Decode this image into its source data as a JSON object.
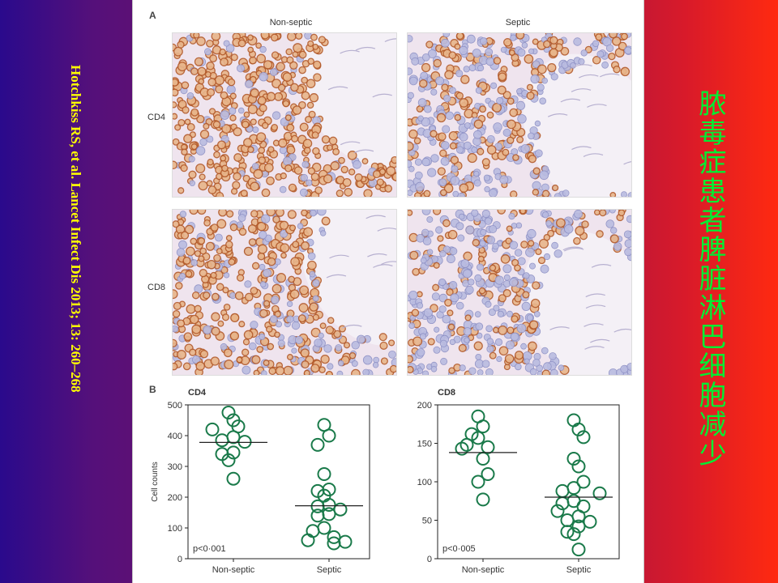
{
  "citation": "Hotchkiss RS, et al. Lancet Infect Dis 2013; 13: 260–268",
  "slide_title": "脓毒症患者脾脏淋巴细胞减少",
  "figure": {
    "panel_a_label": "A",
    "panel_b_label": "B",
    "column_labels": [
      "Non-septic",
      "Septic"
    ],
    "row_labels": [
      "CD4",
      "CD8"
    ],
    "micrographs": [
      {
        "row": "CD4",
        "column": "Non-septic",
        "stain_level": 0.85
      },
      {
        "row": "CD4",
        "column": "Septic",
        "stain_level": 0.45
      },
      {
        "row": "CD8",
        "column": "Non-septic",
        "stain_level": 0.7
      },
      {
        "row": "CD8",
        "column": "Septic",
        "stain_level": 0.3
      }
    ]
  },
  "colors": {
    "marker": "#1a7a4a",
    "stain_brown": "#b35a2a",
    "stain_blue": "#8c8fc4",
    "tissue_bg": "#efe4ee",
    "title_green": "#00ee33",
    "citation_yellow": "#ffff00"
  },
  "chart_data": [
    {
      "type": "scatter",
      "title": "CD4",
      "ylabel": "Cell counts",
      "xlabel": "",
      "categories": [
        "Non-septic",
        "Septic"
      ],
      "ylim": [
        0,
        500
      ],
      "yticks": [
        0,
        100,
        200,
        300,
        400,
        500
      ],
      "annotation": "p<0·001",
      "medians": [
        378,
        172
      ],
      "points": {
        "Non-septic": [
          475,
          450,
          430,
          420,
          395,
          385,
          380,
          345,
          340,
          320,
          260
        ],
        "Septic": [
          435,
          400,
          370,
          275,
          225,
          220,
          205,
          175,
          170,
          160,
          145,
          140,
          100,
          90,
          70,
          60,
          55,
          50
        ]
      }
    },
    {
      "type": "scatter",
      "title": "CD8",
      "ylabel": "",
      "xlabel": "",
      "categories": [
        "Non-septic",
        "Septic"
      ],
      "ylim": [
        0,
        200
      ],
      "yticks": [
        0,
        50,
        100,
        150,
        200
      ],
      "annotation": "p<0·005",
      "medians": [
        138,
        80
      ],
      "points": {
        "Non-septic": [
          185,
          172,
          162,
          157,
          148,
          145,
          143,
          130,
          110,
          100,
          77
        ],
        "Septic": [
          180,
          168,
          158,
          130,
          120,
          100,
          92,
          88,
          85,
          75,
          72,
          68,
          62,
          55,
          50,
          48,
          42,
          35,
          32,
          12
        ]
      }
    }
  ]
}
